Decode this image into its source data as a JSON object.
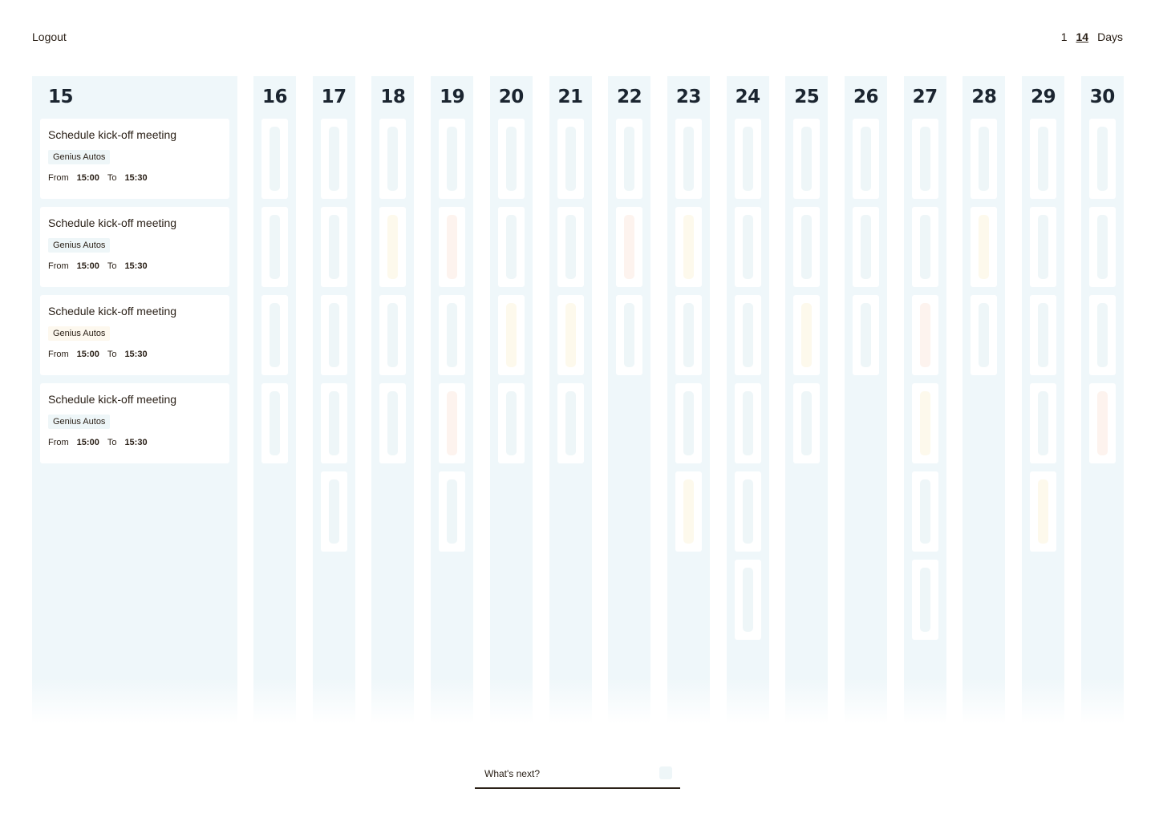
{
  "header": {
    "logout_label": "Logout",
    "range_options": [
      "1",
      "14"
    ],
    "range_active": "14",
    "range_unit": "Days"
  },
  "days": [
    "15",
    "16",
    "17",
    "18",
    "19",
    "20",
    "21",
    "22",
    "23",
    "24",
    "25",
    "26",
    "27",
    "28",
    "29",
    "30"
  ],
  "featured_day": {
    "day": "15",
    "events": [
      {
        "title": "Schedule kick-off meeting",
        "tag": "Genius Autos",
        "from_label": "From",
        "from": "15:00",
        "to_label": "To",
        "to": "15:30",
        "tone": "blue"
      },
      {
        "title": "Schedule kick-off meeting",
        "tag": "Genius Autos",
        "from_label": "From",
        "from": "15:00",
        "to_label": "To",
        "to": "15:30",
        "tone": "blue"
      },
      {
        "title": "Schedule kick-off meeting",
        "tag": "Genius Autos",
        "from_label": "From",
        "from": "15:00",
        "to_label": "To",
        "to": "15:30",
        "tone": "yellow"
      },
      {
        "title": "Schedule kick-off meeting",
        "tag": "Genius Autos",
        "from_label": "From",
        "from": "15:00",
        "to_label": "To",
        "to": "15:30",
        "tone": "blue"
      }
    ]
  },
  "compact_days": [
    {
      "day": "16",
      "events": [
        "blue",
        "blue",
        "blue",
        "blue"
      ]
    },
    {
      "day": "17",
      "events": [
        "blue",
        "blue",
        "blue",
        "blue",
        "blue"
      ]
    },
    {
      "day": "18",
      "events": [
        "blue",
        "yellow",
        "blue",
        "blue"
      ]
    },
    {
      "day": "19",
      "events": [
        "blue",
        "peach",
        "blue",
        "peach",
        "blue"
      ]
    },
    {
      "day": "20",
      "events": [
        "blue",
        "blue",
        "yellow",
        "blue"
      ]
    },
    {
      "day": "21",
      "events": [
        "blue",
        "blue",
        "yellow",
        "blue"
      ]
    },
    {
      "day": "22",
      "events": [
        "blue",
        "peach",
        "blue"
      ]
    },
    {
      "day": "23",
      "events": [
        "blue",
        "yellow",
        "blue",
        "blue",
        "yellow"
      ]
    },
    {
      "day": "24",
      "events": [
        "blue",
        "blue",
        "blue",
        "blue",
        "blue",
        "blue"
      ]
    },
    {
      "day": "25",
      "events": [
        "blue",
        "blue",
        "yellow",
        "blue"
      ]
    },
    {
      "day": "26",
      "events": [
        "blue",
        "blue",
        "blue"
      ]
    },
    {
      "day": "27",
      "events": [
        "blue",
        "blue",
        "peach",
        "yellow",
        "blue",
        "blue"
      ]
    },
    {
      "day": "28",
      "events": [
        "blue",
        "yellow",
        "blue"
      ]
    },
    {
      "day": "29",
      "events": [
        "blue",
        "blue",
        "blue",
        "blue",
        "yellow"
      ]
    },
    {
      "day": "30",
      "events": [
        "blue",
        "blue",
        "blue",
        "peach"
      ]
    }
  ],
  "composer": {
    "placeholder": "What's next?",
    "send_icon": "send-icon"
  }
}
